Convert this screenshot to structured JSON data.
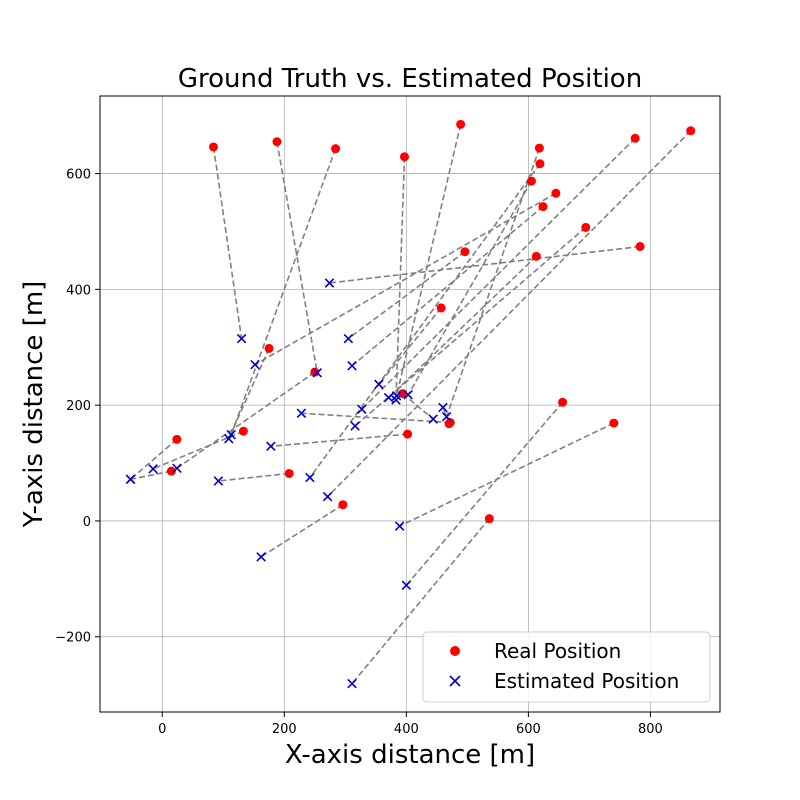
{
  "chart_data": {
    "type": "scatter",
    "title": "Ground Truth vs. Estimated Position",
    "xlabel": "X-axis distance [m]",
    "ylabel": "Y-axis distance [m]",
    "xlim": [
      -102,
      914
    ],
    "ylim": [
      -330,
      734
    ],
    "xticks": [
      0,
      200,
      400,
      600,
      800
    ],
    "yticks": [
      -200,
      0,
      200,
      400,
      600
    ],
    "xtick_labels": [
      "0",
      "200",
      "400",
      "600",
      "800"
    ],
    "ytick_labels": [
      "−200",
      "0",
      "200",
      "400",
      "600"
    ],
    "grid": true,
    "legend_location": "lower right",
    "colors": {
      "real": "#ff0000",
      "estimated": "#0000cc",
      "connector": "#808080"
    },
    "series": [
      {
        "name": "Real Position",
        "marker": "circle"
      },
      {
        "name": "Estimated Position",
        "marker": "x"
      }
    ],
    "pairs": [
      {
        "real": [
          84,
          646
        ],
        "est": [
          130,
          315
        ]
      },
      {
        "real": [
          188,
          655
        ],
        "est": [
          254,
          256
        ]
      },
      {
        "real": [
          284,
          643
        ],
        "est": [
          113,
          149
        ]
      },
      {
        "real": [
          397,
          629
        ],
        "est": [
          383,
          209
        ]
      },
      {
        "real": [
          489,
          685
        ],
        "est": [
          384,
          216
        ]
      },
      {
        "real": [
          618,
          644
        ],
        "est": [
          466,
          180
        ]
      },
      {
        "real": [
          619,
          617
        ],
        "est": [
          242,
          75
        ]
      },
      {
        "real": [
          605,
          587
        ],
        "est": [
          403,
          218
        ]
      },
      {
        "real": [
          645,
          566
        ],
        "est": [
          152,
          270
        ]
      },
      {
        "real": [
          624,
          543
        ],
        "est": [
          311,
          268
        ]
      },
      {
        "real": [
          694,
          507
        ],
        "est": [
          316,
          164
        ]
      },
      {
        "real": [
          775,
          661
        ],
        "est": [
          327,
          193
        ]
      },
      {
        "real": [
          866,
          674
        ],
        "est": [
          271,
          42
        ]
      },
      {
        "real": [
          783,
          474
        ],
        "est": [
          274,
          411
        ]
      },
      {
        "real": [
          613,
          457
        ],
        "est": [
          371,
          213
        ]
      },
      {
        "real": [
          496,
          465
        ],
        "est": [
          305,
          315
        ]
      },
      {
        "real": [
          457,
          368
        ],
        "est": [
          355,
          236
        ]
      },
      {
        "real": [
          250,
          257
        ],
        "est": [
          24,
          91
        ]
      },
      {
        "real": [
          175,
          298
        ],
        "est": [
          109,
          142
        ]
      },
      {
        "real": [
          133,
          155
        ],
        "est": [
          -15,
          90
        ]
      },
      {
        "real": [
          24,
          141
        ],
        "est": [
          -52,
          72
        ]
      },
      {
        "real": [
          15,
          86
        ],
        "est": [
          -52,
          72
        ]
      },
      {
        "real": [
          402,
          150
        ],
        "est": [
          178,
          129
        ]
      },
      {
        "real": [
          208,
          82
        ],
        "est": [
          92,
          69
        ]
      },
      {
        "real": [
          472,
          170
        ],
        "est": [
          228,
          186
        ]
      },
      {
        "real": [
          656,
          205
        ],
        "est": [
          400,
          -111
        ]
      },
      {
        "real": [
          740,
          169
        ],
        "est": [
          389,
          -9
        ]
      },
      {
        "real": [
          296,
          28
        ],
        "est": [
          162,
          -62
        ]
      },
      {
        "real": [
          536,
          4
        ],
        "est": [
          311,
          -281
        ]
      },
      {
        "real": [
          394,
          220
        ],
        "est": [
          444,
          176
        ]
      },
      {
        "real": [
          470,
          168
        ],
        "est": [
          460,
          196
        ]
      }
    ]
  }
}
